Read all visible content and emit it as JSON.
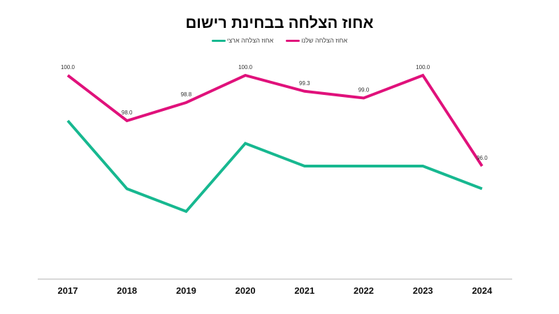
{
  "chart_data": {
    "type": "line",
    "title": "אחוז הצלחה בבחינת רישום",
    "categories": [
      "2017",
      "2018",
      "2019",
      "2020",
      "2021",
      "2022",
      "2023",
      "2024"
    ],
    "series": [
      {
        "name": "אחוז הצלחה שלנו",
        "color": "#E0117B",
        "values": [
          100.0,
          98.0,
          98.8,
          100.0,
          99.3,
          99.0,
          100.0,
          96.0
        ],
        "data_labels": [
          "100.0",
          "98.0",
          "98.8",
          "100.0",
          "99.3",
          "99.0",
          "100.0",
          "96.0"
        ]
      },
      {
        "name": "אחוז הצלחה ארצי",
        "color": "#17B890",
        "values": [
          98,
          95,
          94,
          97,
          96,
          96,
          96,
          95
        ],
        "data_labels": []
      }
    ],
    "xlabel": "",
    "ylabel": "",
    "ylim": [
      91,
      100.5
    ],
    "grid": false,
    "legend_position": "top"
  },
  "title": "אחוז הצלחה בבחינת רישום",
  "legend": [
    {
      "label": "אחוז הצלחה שלנו",
      "color": "#E0117B"
    },
    {
      "label": "אחוז הצלחה ארצי",
      "color": "#17B890"
    }
  ]
}
